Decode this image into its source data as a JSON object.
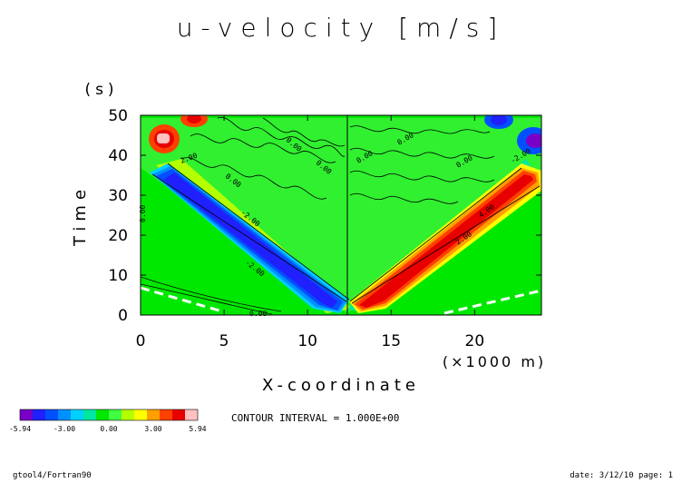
{
  "chart_data": {
    "type": "heatmap",
    "title": "u-velocity [m/s]",
    "xlabel": "X-coordinate",
    "x_unit": "(×1000 m)",
    "ylabel": "Time",
    "y_unit": "(s)",
    "xlim": [
      0,
      24
    ],
    "ylim": [
      0,
      50
    ],
    "x_ticks": [
      0,
      5,
      10,
      15,
      20
    ],
    "y_ticks": [
      0,
      10,
      20,
      30,
      40,
      50
    ],
    "value_range": [
      -5.94,
      5.94
    ],
    "colorbar": {
      "labels": [
        "-5.94",
        "-3.00",
        "0.00",
        "3.00",
        "5.94"
      ],
      "colors": [
        "#7a00c8",
        "#2020ff",
        "#0050ff",
        "#0090ff",
        "#00d0ff",
        "#00e8a0",
        "#00e800",
        "#40ff40",
        "#b4ff00",
        "#ffff00",
        "#ffa000",
        "#ff4000",
        "#e80000",
        "#ffc0c0"
      ]
    },
    "contour_labels": [
      "0.00",
      "2.00",
      "-2.00",
      "4.00"
    ],
    "contour_interval_text": "CONTOUR INTERVAL = 1.000E+00"
  },
  "footer": {
    "left": "gtool4/Fortran90",
    "right": "date: 3/12/10 page: 1"
  }
}
